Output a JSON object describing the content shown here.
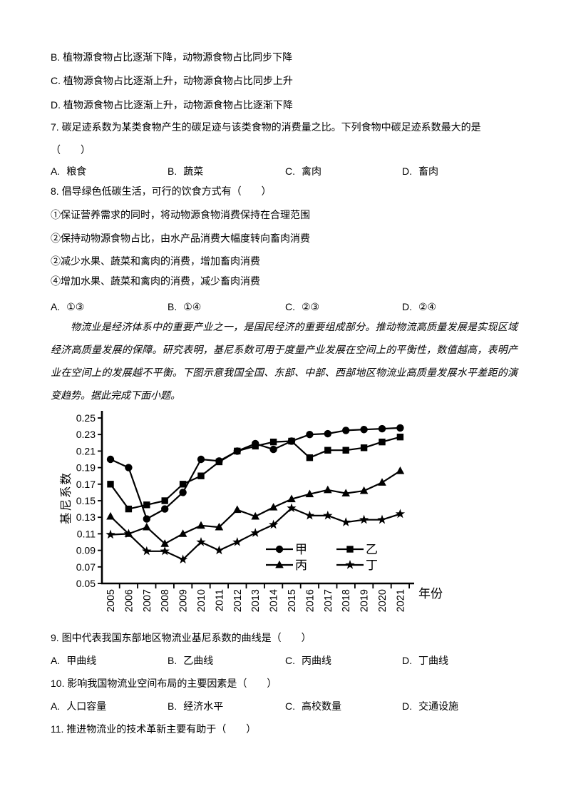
{
  "page_bg": "#ffffff",
  "ink_color": "#000000",
  "pre_options": [
    {
      "label": "B.",
      "text": "植物源食物占比逐渐下降，动物源食物占比同步下降"
    },
    {
      "label": "C.",
      "text": "植物源食物占比逐渐上升，动物源食物占比同步上升"
    },
    {
      "label": "D.",
      "text": "植物源食物占比逐渐上升，动物源食物占比逐渐下降"
    }
  ],
  "q7": {
    "stem_line1": "7. 碳足迹系数为某类食物产生的碳足迹与该类食物的消费量之比。下列食物中碳足迹系数最大的是",
    "stem_line2": "（　　）",
    "options": [
      {
        "label": "A.",
        "text": "粮食"
      },
      {
        "label": "B.",
        "text": "蔬菜"
      },
      {
        "label": "C.",
        "text": "禽肉"
      },
      {
        "label": "D.",
        "text": "畜肉"
      }
    ]
  },
  "q8": {
    "stem": "8. 倡导绿色低碳生活，可行的饮食方式有（　　）",
    "items": [
      "①保证营养需求的同时，将动物源食物消费保持在合理范围",
      "②保持动物源食物占比，由水产品消费大幅度转向畜肉消费",
      "②减少水果、蔬菜和禽肉的消费，增加畜肉消费",
      "④增加水果、蔬菜和禽肉的消费，减少畜肉消费"
    ],
    "options": [
      {
        "label": "A.",
        "text": "①③"
      },
      {
        "label": "B.",
        "text": "①④"
      },
      {
        "label": "C.",
        "text": "②③"
      },
      {
        "label": "D.",
        "text": "②④"
      }
    ]
  },
  "passage": {
    "lines": [
      "物流业是经济体系中的重要产业之一，是国民经济的重要组成部分。推动物流高质量发展是实现区域",
      "经济高质量发展的保障。研究表明，基尼系数可用于度量产业发展在空间上的平衡性，数值越高，表明产",
      "业在空间上的发展越不平衡。下图示意我国全国、东部、中部、西部地区物流业高质量发展水平差距的演",
      "变趋势。据此完成下面小题。"
    ]
  },
  "chart_data": {
    "type": "line",
    "title": "",
    "xlabel": "年份",
    "ylabel": "基尼系数",
    "x": [
      2005,
      2006,
      2007,
      2008,
      2009,
      2010,
      2011,
      2012,
      2013,
      2014,
      2015,
      2016,
      2017,
      2018,
      2019,
      2020,
      2021
    ],
    "ylim": [
      0.05,
      0.25
    ],
    "yticks": [
      0.05,
      0.07,
      0.09,
      0.11,
      0.13,
      0.15,
      0.17,
      0.19,
      0.21,
      0.23,
      0.25
    ],
    "grid": false,
    "legend_position": "inside-bottom-right",
    "series": [
      {
        "name": "甲",
        "marker": "circle",
        "values": [
          0.2,
          0.19,
          0.128,
          0.14,
          0.16,
          0.2,
          0.198,
          0.21,
          0.219,
          0.212,
          0.222,
          0.23,
          0.231,
          0.235,
          0.236,
          0.237,
          0.238
        ]
      },
      {
        "name": "乙",
        "marker": "square",
        "values": [
          0.17,
          0.14,
          0.145,
          0.15,
          0.17,
          0.18,
          0.197,
          0.21,
          0.216,
          0.221,
          0.222,
          0.202,
          0.211,
          0.211,
          0.214,
          0.221,
          0.227
        ]
      },
      {
        "name": "丙",
        "marker": "triangle",
        "values": [
          0.131,
          0.11,
          0.118,
          0.098,
          0.11,
          0.12,
          0.118,
          0.139,
          0.131,
          0.142,
          0.152,
          0.158,
          0.163,
          0.159,
          0.162,
          0.172,
          0.186
        ]
      },
      {
        "name": "丁",
        "marker": "star",
        "values": [
          0.109,
          0.11,
          0.089,
          0.089,
          0.079,
          0.1,
          0.09,
          0.1,
          0.111,
          0.121,
          0.141,
          0.132,
          0.132,
          0.124,
          0.127,
          0.127,
          0.134
        ]
      }
    ]
  },
  "q9": {
    "stem": "9. 图中代表我国东部地区物流业基尼系数的曲线是（　　）",
    "options": [
      {
        "label": "A.",
        "text": "甲曲线"
      },
      {
        "label": "B.",
        "text": "乙曲线"
      },
      {
        "label": "C.",
        "text": "丙曲线"
      },
      {
        "label": "D.",
        "text": "丁曲线"
      }
    ]
  },
  "q10": {
    "stem": "10. 影响我国物流业空间布局的主要因素是（　　）",
    "options": [
      {
        "label": "A.",
        "text": "人口容量"
      },
      {
        "label": "B.",
        "text": "经济水平"
      },
      {
        "label": "C.",
        "text": "高校数量"
      },
      {
        "label": "D.",
        "text": "交通设施"
      }
    ]
  },
  "q11": {
    "stem": "11. 推进物流业的技术革新主要有助于（　　）"
  }
}
